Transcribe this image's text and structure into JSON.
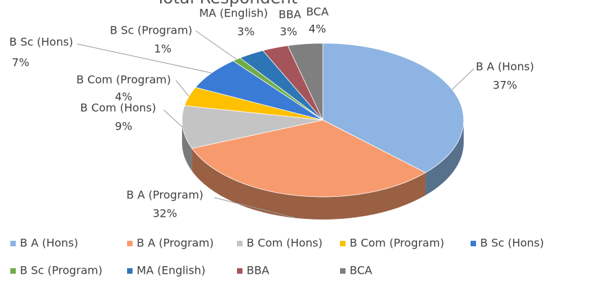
{
  "chart_data": {
    "type": "pie",
    "title": "Total Respondent",
    "categories": [
      "B A (Hons)",
      "B A (Program)",
      "B Com (Hons)",
      "B Com (Program)",
      "B Sc (Hons)",
      "B Sc (Program)",
      "MA (English)",
      "BBA",
      "BCA"
    ],
    "values": [
      37,
      32,
      9,
      4,
      7,
      1,
      3,
      3,
      4
    ],
    "value_labels": [
      "37%",
      "32%",
      "9%",
      "4%",
      "7%",
      "1%",
      "3%",
      "3%",
      "4%"
    ],
    "colors": [
      "#8db4e2",
      "#f79b6e",
      "#c4c4c4",
      "#ffc000",
      "#3a7bd5",
      "#70ad47",
      "#2e75b6",
      "#a5545a",
      "#7f7f7f"
    ],
    "legend": "bottom"
  }
}
